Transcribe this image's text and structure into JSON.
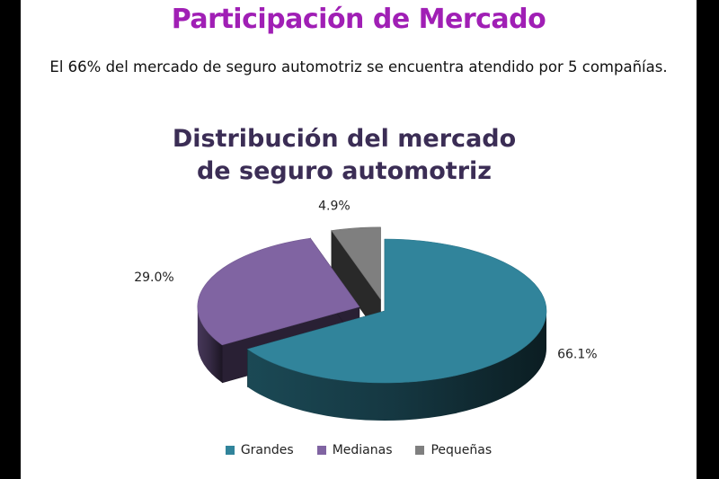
{
  "slide": {
    "title": "Participación de Mercado",
    "subtitle": "El 66% del mercado de seguro automotriz se encuentra atendido por 5 compañías."
  },
  "chart_data": {
    "type": "pie",
    "title_lines": [
      "Distribución del mercado",
      "de seguro automotriz"
    ],
    "categories": [
      "Grandes",
      "Medianas",
      "Pequeñas"
    ],
    "values": [
      66.1,
      29.0,
      4.9
    ],
    "labels": [
      "66.1%",
      "29.0%",
      "4.9%"
    ],
    "colors": [
      "#31849b",
      "#8064a2",
      "#7f7f7f"
    ],
    "exploded": [
      false,
      true,
      true
    ],
    "legend_position": "bottom",
    "style": "3d"
  }
}
